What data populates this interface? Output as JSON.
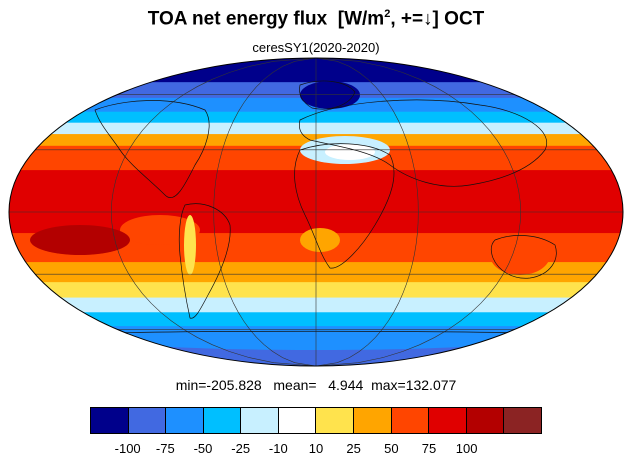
{
  "title": {
    "main": "TOA net energy flux",
    "units_prefix": "[W/m",
    "units_sup": "2",
    "units_suffix": ", +=↓] OCT"
  },
  "subtitle": "ceresSY1(2020-2020)",
  "stats": {
    "min_label": "min=",
    "min": "-205.828",
    "mean_label": "mean=",
    "mean": "4.944",
    "max_label": "max=",
    "max": "132.077"
  },
  "colorbar": {
    "colors": [
      "#00008b",
      "#4169e1",
      "#1e90ff",
      "#00bfff",
      "#c8f0ff",
      "#ffffff",
      "#ffe34d",
      "#ffa500",
      "#ff4500",
      "#e00000",
      "#b30000",
      "#8b2323"
    ],
    "tick_labels": [
      "-100",
      "-75",
      "-50",
      "-25",
      "-10",
      "10",
      "25",
      "50",
      "75",
      "100"
    ]
  },
  "map": {
    "projection": "mollweide",
    "bands": [
      {
        "lat_from": 90,
        "lat_to": 68,
        "color": "#00008b"
      },
      {
        "lat_from": 68,
        "lat_to": 58,
        "color": "#4169e1"
      },
      {
        "lat_from": 58,
        "lat_to": 50,
        "color": "#1e90ff"
      },
      {
        "lat_from": 50,
        "lat_to": 44,
        "color": "#00bfff"
      },
      {
        "lat_from": 44,
        "lat_to": 38,
        "color": "#c8f0ff"
      },
      {
        "lat_from": 38,
        "lat_to": 32,
        "color": "#ffa500"
      },
      {
        "lat_from": 32,
        "lat_to": 20,
        "color": "#ff4500"
      },
      {
        "lat_from": 20,
        "lat_to": -10,
        "color": "#e00000"
      },
      {
        "lat_from": -10,
        "lat_to": -24,
        "color": "#ff4500"
      },
      {
        "lat_from": -24,
        "lat_to": -34,
        "color": "#ffa500"
      },
      {
        "lat_from": -34,
        "lat_to": -42,
        "color": "#ffe34d"
      },
      {
        "lat_from": -42,
        "lat_to": -50,
        "color": "#c8f0ff"
      },
      {
        "lat_from": -50,
        "lat_to": -58,
        "color": "#00bfff"
      },
      {
        "lat_from": -58,
        "lat_to": -66,
        "color": "#1e90ff"
      },
      {
        "lat_from": -66,
        "lat_to": -90,
        "color": "#4169e1"
      }
    ]
  }
}
